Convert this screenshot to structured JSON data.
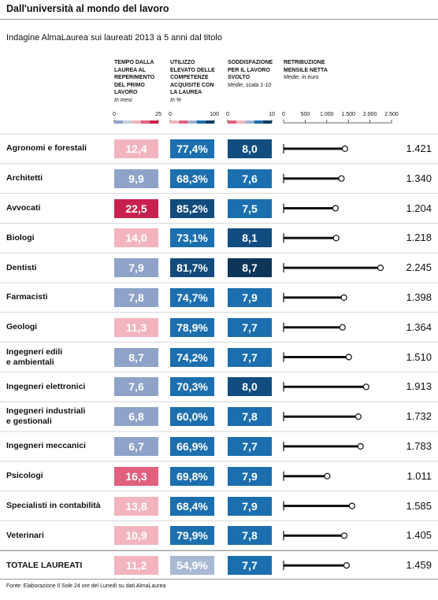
{
  "header": {
    "title": "Dall'università al mondo del lavoro",
    "subtitle": "Indagine AlmaLaurea sui laureati 2013 a 5 anni dal titolo"
  },
  "table": {
    "columns": [
      {
        "title": [
          "TEMPO DALLA",
          "LAUREA AL",
          "REPERIMENTO",
          "DEL PRIMO",
          "LAVORO"
        ],
        "unit": "In mesi",
        "ticks": [
          0,
          25
        ]
      },
      {
        "title": [
          "UTILIZZO",
          "ELEVATO DELLE",
          "COMPETENZE",
          "ACQUISITE CON",
          "LA LAUREA"
        ],
        "unit": "In %",
        "ticks": [
          0,
          100
        ]
      },
      {
        "title": [
          "SODDISFAZIONE",
          "PER IL LAVORO",
          "SVOLTO"
        ],
        "unit": "Medie, scala 1-10",
        "ticks": [
          0,
          10
        ]
      },
      {
        "title": [
          "RETRIBUZIONE",
          "MENSILE NETTA"
        ],
        "unit": "Medie, in euro",
        "ticks": [
          0,
          500,
          {
            "value": 1000,
            "label": "1.000"
          },
          {
            "value": 1500,
            "label": "1.500"
          },
          {
            "value": 2000,
            "label": "2.000"
          },
          {
            "value": 2500,
            "label": "2.500"
          }
        ]
      }
    ],
    "rows": [
      {
        "name": [
          "Agronomi e forestali"
        ],
        "cells": [
          {
            "value": 12.4,
            "label": "12,4"
          },
          {
            "value": 77.4,
            "label": "77,4%"
          },
          {
            "value": 8.0,
            "label": "8,0"
          },
          {
            "value": 1421,
            "label": "1.421"
          }
        ]
      },
      {
        "name": [
          "Architetti"
        ],
        "cells": [
          {
            "value": 9.9,
            "label": "9,9"
          },
          {
            "value": 68.3,
            "label": "68,3%"
          },
          {
            "value": 7.6,
            "label": "7,6"
          },
          {
            "value": 1340,
            "label": "1.340"
          }
        ]
      },
      {
        "name": [
          "Avvocati"
        ],
        "cells": [
          {
            "value": 22.5,
            "label": "22,5"
          },
          {
            "value": 85.2,
            "label": "85,2%"
          },
          {
            "value": 7.5,
            "label": "7,5"
          },
          {
            "value": 1204,
            "label": "1.204"
          }
        ]
      },
      {
        "name": [
          "Biologi"
        ],
        "cells": [
          {
            "value": 14.0,
            "label": "14,0"
          },
          {
            "value": 73.1,
            "label": "73,1%"
          },
          {
            "value": 8.1,
            "label": "8,1"
          },
          {
            "value": 1218,
            "label": "1.218"
          }
        ]
      },
      {
        "name": [
          "Dentisti"
        ],
        "cells": [
          {
            "value": 7.9,
            "label": "7,9"
          },
          {
            "value": 81.7,
            "label": "81,7%"
          },
          {
            "value": 8.7,
            "label": "8,7"
          },
          {
            "value": 2245,
            "label": "2.245"
          }
        ]
      },
      {
        "name": [
          "Farmacisti"
        ],
        "cells": [
          {
            "value": 7.8,
            "label": "7,8"
          },
          {
            "value": 74.7,
            "label": "74,7%"
          },
          {
            "value": 7.9,
            "label": "7,9"
          },
          {
            "value": 1398,
            "label": "1.398"
          }
        ]
      },
      {
        "name": [
          "Geologi"
        ],
        "cells": [
          {
            "value": 11.3,
            "label": "11,3"
          },
          {
            "value": 78.9,
            "label": "78,9%"
          },
          {
            "value": 7.7,
            "label": "7,7"
          },
          {
            "value": 1364,
            "label": "1.364"
          }
        ]
      },
      {
        "name": [
          "Ingegneri edili",
          "e ambientali"
        ],
        "cells": [
          {
            "value": 8.7,
            "label": "8,7"
          },
          {
            "value": 74.2,
            "label": "74,2%"
          },
          {
            "value": 7.7,
            "label": "7,7"
          },
          {
            "value": 1510,
            "label": "1.510"
          }
        ]
      },
      {
        "name": [
          "Ingegneri elettronici"
        ],
        "cells": [
          {
            "value": 7.6,
            "label": "7,6"
          },
          {
            "value": 70.3,
            "label": "70,3%"
          },
          {
            "value": 8.0,
            "label": "8,0"
          },
          {
            "value": 1913,
            "label": "1.913"
          }
        ]
      },
      {
        "name": [
          "Ingegneri industriali",
          "e gestionali"
        ],
        "cells": [
          {
            "value": 6.8,
            "label": "6,8"
          },
          {
            "value": 60.0,
            "label": "60,0%"
          },
          {
            "value": 7.8,
            "label": "7,8"
          },
          {
            "value": 1732,
            "label": "1.732"
          }
        ]
      },
      {
        "name": [
          "Ingegneri meccanici"
        ],
        "cells": [
          {
            "value": 6.7,
            "label": "6,7"
          },
          {
            "value": 66.9,
            "label": "66,9%"
          },
          {
            "value": 7.7,
            "label": "7,7"
          },
          {
            "value": 1783,
            "label": "1.783"
          }
        ]
      },
      {
        "name": [
          "Psicologi"
        ],
        "cells": [
          {
            "value": 16.3,
            "label": "16,3"
          },
          {
            "value": 69.8,
            "label": "69,8%"
          },
          {
            "value": 7.9,
            "label": "7,9"
          },
          {
            "value": 1011,
            "label": "1.011"
          }
        ]
      },
      {
        "name": [
          "Specialisti in contabilità"
        ],
        "cells": [
          {
            "value": 13.8,
            "label": "13,8"
          },
          {
            "value": 68.4,
            "label": "68,4%"
          },
          {
            "value": 7.9,
            "label": "7,9"
          },
          {
            "value": 1585,
            "label": "1.585"
          }
        ]
      },
      {
        "name": [
          "Veterinari"
        ],
        "cells": [
          {
            "value": 10.9,
            "label": "10,9"
          },
          {
            "value": 79.9,
            "label": "79,9%"
          },
          {
            "value": 7.8,
            "label": "7,8"
          },
          {
            "value": 1405,
            "label": "1.405"
          }
        ]
      },
      {
        "name": [
          "TOTALE LAUREATI"
        ],
        "cells": [
          {
            "value": 11.2,
            "label": "11,2"
          },
          {
            "value": 54.9,
            "label": "54,9%"
          },
          {
            "value": 7.7,
            "label": "7,7"
          },
          {
            "value": 1459,
            "label": "1.459"
          }
        ]
      }
    ]
  },
  "footer": {
    "source": "Fonte: Elaborazione Il Sole 24 ore del Lunedì su dati AlmaLaurea"
  }
}
